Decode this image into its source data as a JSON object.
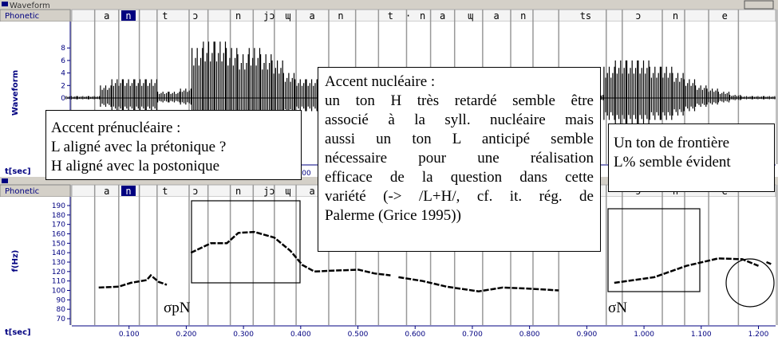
{
  "windows": [
    {
      "title": "Waveform",
      "tier_label": "Phonetic",
      "y_axis_label": "Waveform",
      "ylim": [
        -10,
        10
      ],
      "yticks": [
        8,
        6,
        4,
        2,
        0
      ],
      "time_axis_label": "t[sec]"
    },
    {
      "tier_label": "Phonetic",
      "y_axis_label": "f(Hz)",
      "ylim": [
        70,
        190
      ],
      "yticks": [
        190,
        180,
        170,
        160,
        150,
        140,
        130,
        120,
        110,
        100,
        90,
        80,
        70
      ],
      "time_axis_label": "t[sec]"
    }
  ],
  "time": {
    "xlim": [
      0,
      1.23
    ],
    "xticks": [
      {
        "value": 0.1,
        "label": "0.100"
      },
      {
        "value": 0.2,
        "label": "0.200"
      },
      {
        "value": 0.3,
        "label": "0.300"
      },
      {
        "value": 0.4,
        "label": "0.400"
      },
      {
        "value": 0.5,
        "label": "0.500"
      },
      {
        "value": 0.6,
        "label": "0.600"
      },
      {
        "value": 0.7,
        "label": "0.700"
      },
      {
        "value": 0.8,
        "label": "0.800"
      },
      {
        "value": 0.9,
        "label": "0.900"
      },
      {
        "value": 1.0,
        "label": "1.000"
      },
      {
        "value": 1.1,
        "label": "1.100"
      },
      {
        "value": 1.2,
        "label": "1.200"
      }
    ]
  },
  "phones": [
    {
      "label": "a",
      "t": 0.061
    },
    {
      "label": "n",
      "t": 0.099
    },
    {
      "label": "t",
      "t": 0.163
    },
    {
      "label": "ɔ",
      "t": 0.216
    },
    {
      "label": "n",
      "t": 0.291
    },
    {
      "label": "jɔ",
      "t": 0.345
    },
    {
      "label": "ɰ",
      "t": 0.378
    },
    {
      "label": "a",
      "t": 0.42
    },
    {
      "label": "n",
      "t": 0.47
    },
    {
      "label": "t",
      "t": 0.557
    },
    {
      "label": "·",
      "t": 0.588
    },
    {
      "label": "n",
      "t": 0.613
    },
    {
      "label": "a",
      "t": 0.648
    },
    {
      "label": "ɰ",
      "t": 0.697
    },
    {
      "label": "a",
      "t": 0.742
    },
    {
      "label": "n",
      "t": 0.789
    },
    {
      "label": "ts",
      "t": 0.898
    },
    {
      "label": "ɔ",
      "t": 0.99
    },
    {
      "label": "n",
      "t": 1.055
    },
    {
      "label": "e",
      "t": 1.141
    }
  ],
  "selected_phone": 1,
  "boundaries": [
    0.04,
    0.082,
    0.118,
    0.149,
    0.205,
    0.238,
    0.277,
    0.317,
    0.354,
    0.392,
    0.449,
    0.496,
    0.536,
    0.585,
    0.627,
    0.669,
    0.718,
    0.767,
    0.806,
    0.851,
    0.934,
    0.962,
    1.032,
    1.071,
    1.113,
    1.165
  ],
  "waveform": {
    "x": [
      0,
      0.02,
      0.04,
      0.06,
      0.08,
      0.1,
      0.12,
      0.14,
      0.16,
      0.18,
      0.2,
      0.22,
      0.24,
      0.26,
      0.28,
      0.3,
      0.32,
      0.34,
      0.36,
      0.38,
      0.4,
      0.42,
      0.44,
      0.46,
      0.48,
      0.5,
      0.52,
      0.54,
      0.56,
      0.58,
      0.6,
      0.62,
      0.64,
      0.66,
      0.68,
      0.7,
      0.72,
      0.74,
      0.76,
      0.78,
      0.8,
      0.82,
      0.84,
      0.86,
      0.88,
      0.9,
      0.92,
      0.94,
      0.96,
      0.98,
      1,
      1.02,
      1.04,
      1.06,
      1.08,
      1.1,
      1.12,
      1.14,
      1.16,
      1.18,
      1.2,
      1.22
    ],
    "amplitude": [
      0.3,
      0.3,
      0.3,
      2,
      3,
      3,
      3,
      3,
      1,
      1,
      1.5,
      8,
      9,
      9,
      8,
      7,
      8,
      7,
      6,
      4,
      3,
      3,
      3,
      2.5,
      2.5,
      2,
      2,
      1,
      0.5,
      2,
      2.5,
      2.5,
      2,
      2,
      1.5,
      1,
      1.5,
      1.5,
      1,
      1,
      1,
      0.5,
      0.5,
      0.5,
      0.3,
      0.3,
      0.5,
      5,
      6,
      6,
      6,
      5,
      5,
      4,
      3,
      2,
      1.5,
      1,
      0.5,
      0.3,
      0.3,
      0.3
    ]
  },
  "f0": {
    "x": [
      0.047,
      0.082,
      0.103,
      0.131,
      0.138,
      0.152,
      0.166,
      0.19,
      0.208,
      0.243,
      0.271,
      0.291,
      0.319,
      0.354,
      0.382,
      0.403,
      0.424,
      0.459,
      0.501,
      0.529,
      0.557,
      0.564,
      0.571,
      0.613,
      0.655,
      0.711,
      0.753,
      0.795,
      0.851,
      0.9,
      0.948,
      1.018,
      1.074,
      1.13,
      1.172,
      1.2,
      1.207,
      1.214,
      1.222
    ],
    "hz": [
      103,
      104,
      108,
      111,
      116,
      109,
      106,
      null,
      140,
      150,
      150,
      161,
      162,
      156,
      142,
      127,
      120,
      121,
      122,
      118,
      116,
      null,
      114,
      110,
      104,
      99,
      103,
      102,
      100,
      null,
      108,
      114,
      126,
      134,
      133,
      126,
      null,
      130,
      128
    ]
  },
  "annotations": {
    "prenuclear": {
      "heading": "Accent prénucléaire :",
      "lines": [
        "L aligné avec la prétonique ?",
        "H aligné avec la postonique"
      ]
    },
    "nuclear": {
      "heading": "Accent nucléaire :",
      "lines": [
        "un ton H très retardé semble être",
        "associé à la syll. nucléaire mais",
        "aussi un ton L anticipé semble",
        "nécessaire pour une réalisation",
        "efficace de la question dans cette",
        "variété (-> /L+H/, cf. it. rég. de",
        "Palerme (Grice 1995))"
      ]
    },
    "boundary": {
      "lines": [
        "Un ton de frontière",
        "L% semble évident"
      ]
    },
    "marker_prenuclear": "σpN",
    "marker_nuclear": "σN"
  }
}
